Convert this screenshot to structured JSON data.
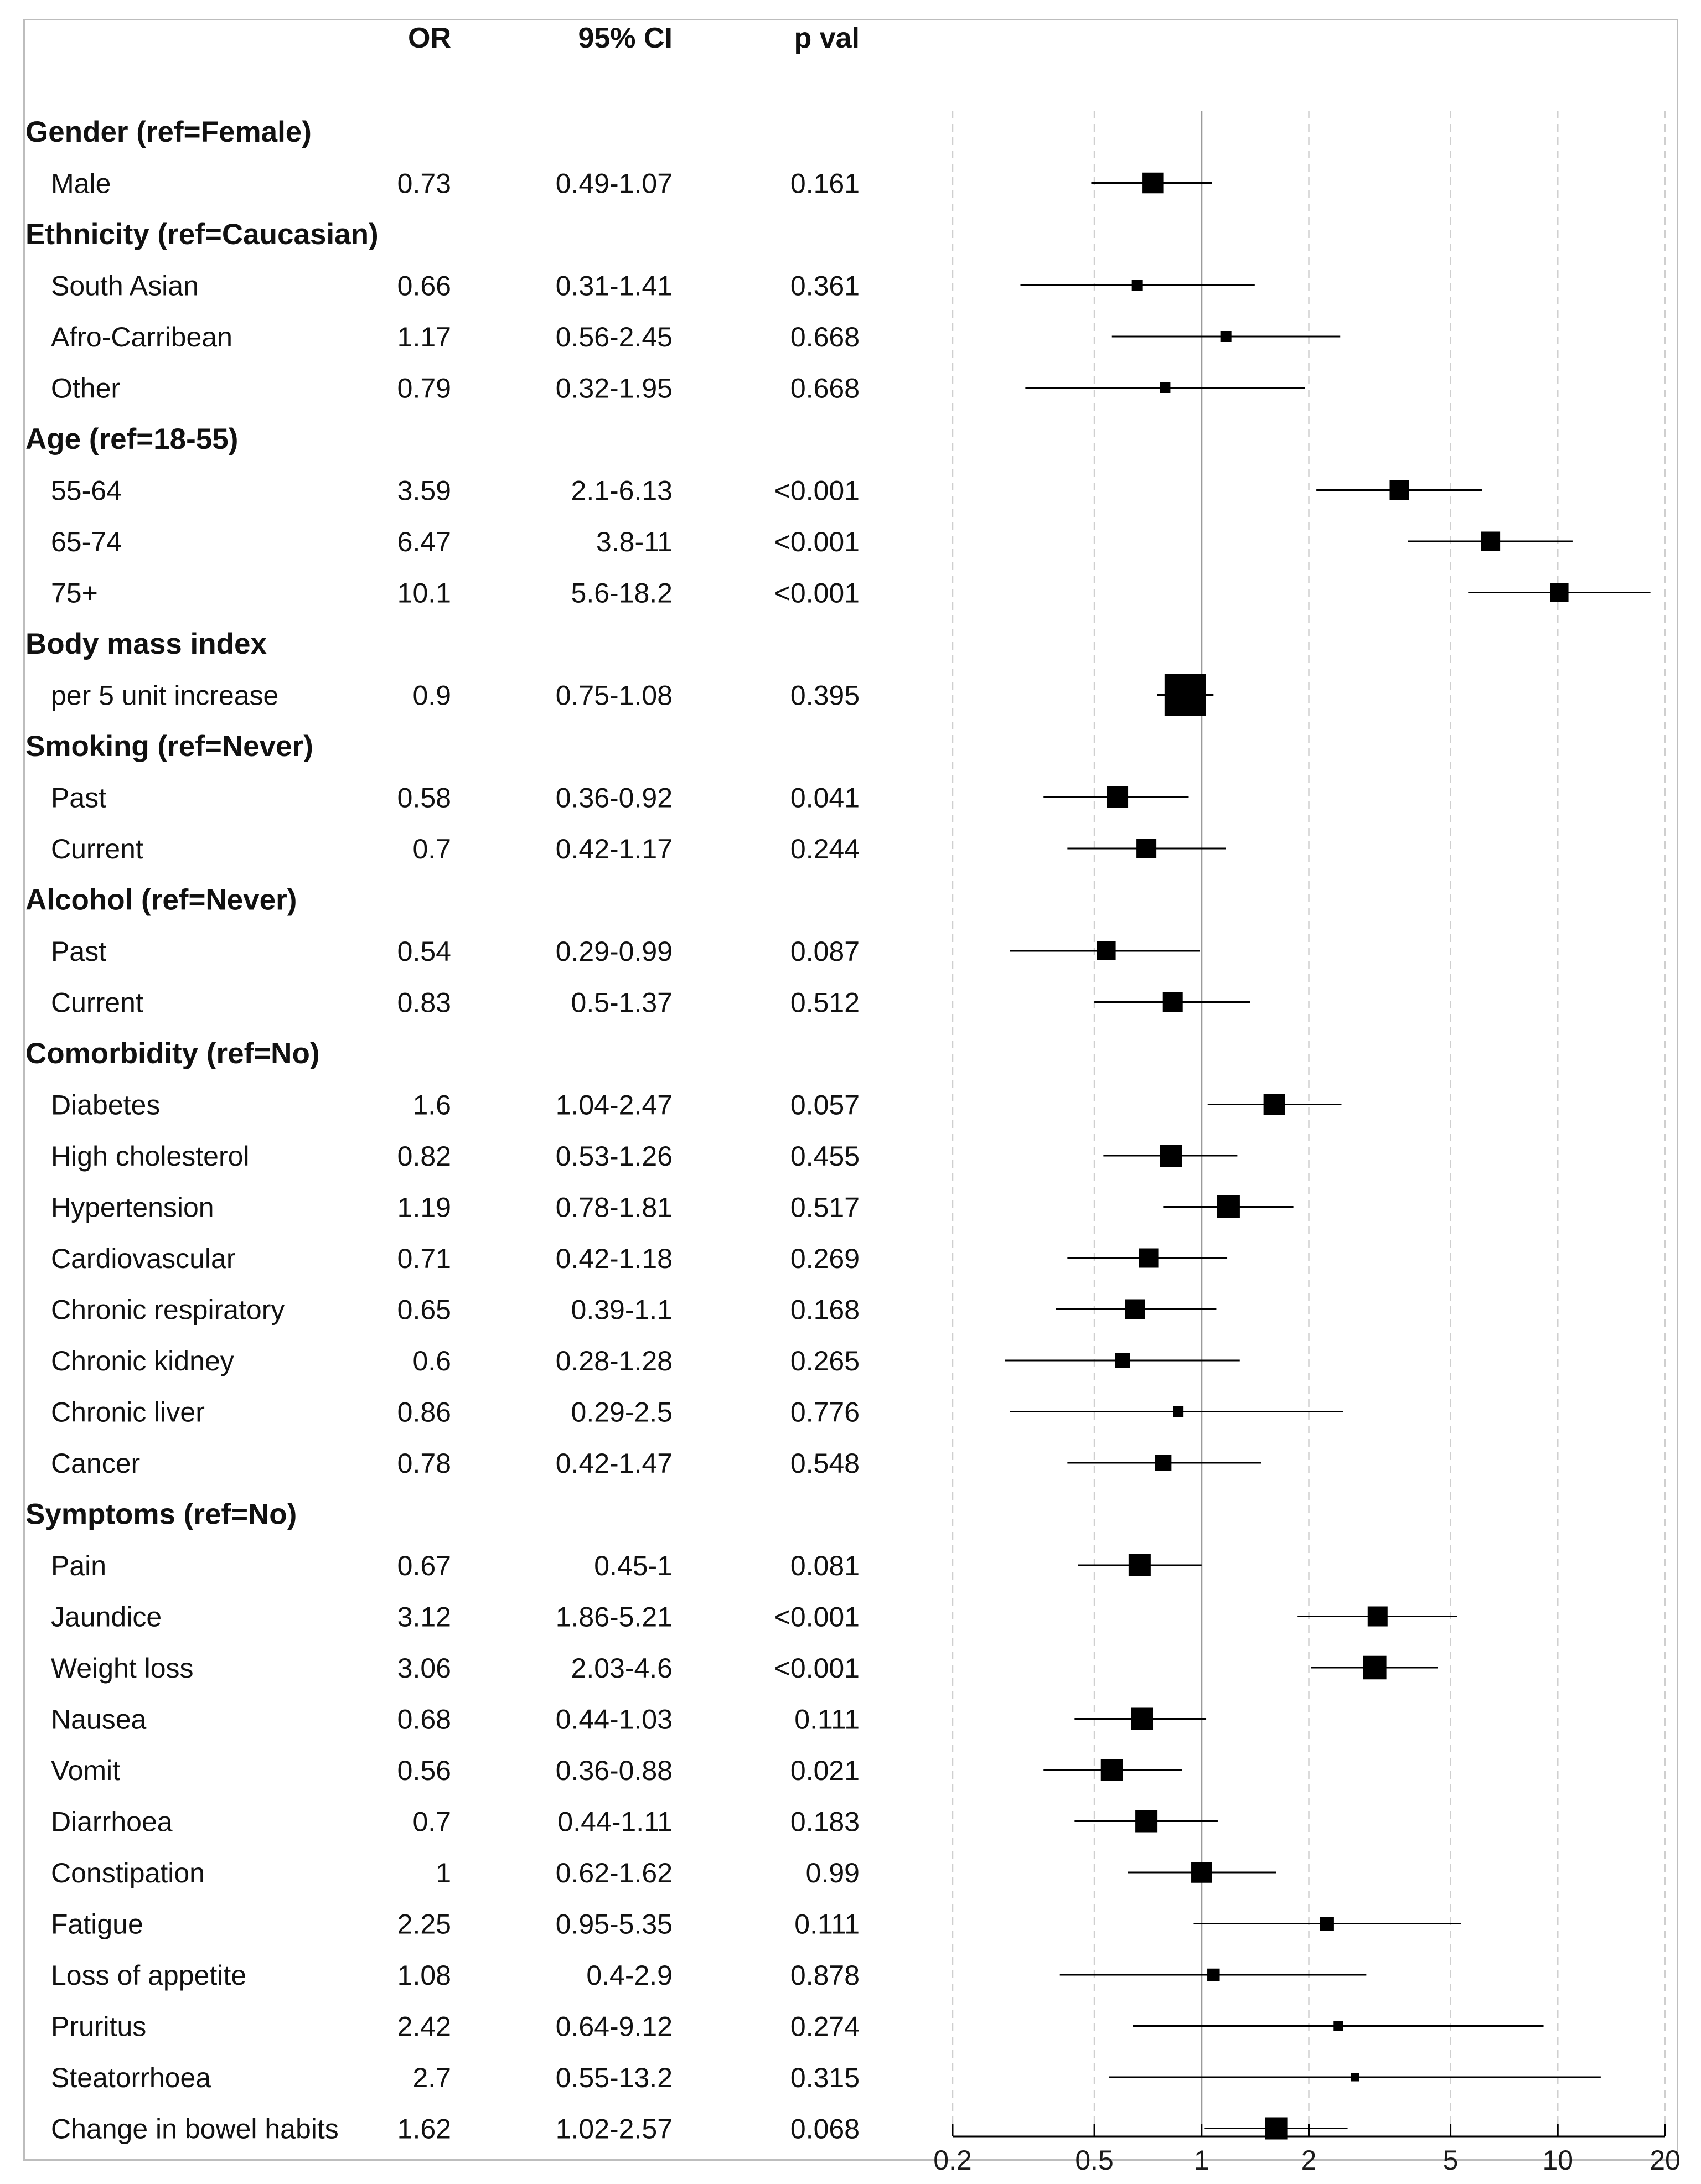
{
  "chart_data": {
    "type": "forest",
    "columns": [
      "OR",
      "95% CI",
      "p val"
    ],
    "x_scale": "log",
    "xlim": [
      0.2,
      20
    ],
    "x_ticks": [
      "0.2",
      "0.5",
      "1",
      "2",
      "5",
      "10",
      "20"
    ],
    "reference_line": 1,
    "rows": [
      {
        "kind": "group",
        "label": "Gender (ref=Female)"
      },
      {
        "kind": "item",
        "label": "Male",
        "or_text": "0.73",
        "ci_text": "0.49-1.07",
        "p_text": "0.161",
        "or": 0.73,
        "lo": 0.49,
        "hi": 1.07,
        "weight": 0.75
      },
      {
        "kind": "group",
        "label": "Ethnicity (ref=Caucasian)"
      },
      {
        "kind": "item",
        "label": "South Asian",
        "or_text": "0.66",
        "ci_text": "0.31-1.41",
        "p_text": "0.361",
        "or": 0.66,
        "lo": 0.31,
        "hi": 1.41,
        "weight": 0.4
      },
      {
        "kind": "item",
        "label": "Afro-Carribean",
        "or_text": "1.17",
        "ci_text": "0.56-2.45",
        "p_text": "0.668",
        "or": 1.17,
        "lo": 0.56,
        "hi": 2.45,
        "weight": 0.4
      },
      {
        "kind": "item",
        "label": "Other",
        "or_text": "0.79",
        "ci_text": "0.32-1.95",
        "p_text": "0.668",
        "or": 0.79,
        "lo": 0.32,
        "hi": 1.95,
        "weight": 0.38
      },
      {
        "kind": "group",
        "label": "Age (ref=18-55)"
      },
      {
        "kind": "item",
        "label": "55-64",
        "or_text": "3.59",
        "ci_text": "2.1-6.13",
        "p_text": "<0.001",
        "or": 3.59,
        "lo": 2.1,
        "hi": 6.13,
        "weight": 0.7
      },
      {
        "kind": "item",
        "label": "65-74",
        "or_text": "6.47",
        "ci_text": "3.8-11",
        "p_text": "<0.001",
        "or": 6.47,
        "lo": 3.8,
        "hi": 11,
        "weight": 0.7
      },
      {
        "kind": "item",
        "label": "75+",
        "or_text": "10.1",
        "ci_text": "5.6-18.2",
        "p_text": "<0.001",
        "or": 10.1,
        "lo": 5.6,
        "hi": 18.2,
        "weight": 0.66
      },
      {
        "kind": "group",
        "label": "Body mass index"
      },
      {
        "kind": "item",
        "label": "per 5 unit increase",
        "or_text": "0.9",
        "ci_text": "0.75-1.08",
        "p_text": "0.395",
        "or": 0.9,
        "lo": 0.75,
        "hi": 1.08,
        "weight": 1.5
      },
      {
        "kind": "group",
        "label": "Smoking (ref=Never)"
      },
      {
        "kind": "item",
        "label": "Past",
        "or_text": "0.58",
        "ci_text": "0.36-0.92",
        "p_text": "0.041",
        "or": 0.58,
        "lo": 0.36,
        "hi": 0.92,
        "weight": 0.78
      },
      {
        "kind": "item",
        "label": "Current",
        "or_text": "0.7",
        "ci_text": "0.42-1.17",
        "p_text": "0.244",
        "or": 0.7,
        "lo": 0.42,
        "hi": 1.17,
        "weight": 0.72
      },
      {
        "kind": "group",
        "label": "Alcohol (ref=Never)"
      },
      {
        "kind": "item",
        "label": "Past",
        "or_text": "0.54",
        "ci_text": "0.29-0.99",
        "p_text": "0.087",
        "or": 0.54,
        "lo": 0.29,
        "hi": 0.99,
        "weight": 0.68
      },
      {
        "kind": "item",
        "label": "Current",
        "or_text": "0.83",
        "ci_text": "0.5-1.37",
        "p_text": "0.512",
        "or": 0.83,
        "lo": 0.5,
        "hi": 1.37,
        "weight": 0.72
      },
      {
        "kind": "group",
        "label": "Comorbidity (ref=No)"
      },
      {
        "kind": "item",
        "label": "Diabetes",
        "or_text": "1.6",
        "ci_text": "1.04-2.47",
        "p_text": "0.057",
        "or": 1.6,
        "lo": 1.04,
        "hi": 2.47,
        "weight": 0.78
      },
      {
        "kind": "item",
        "label": "High cholesterol",
        "or_text": "0.82",
        "ci_text": "0.53-1.26",
        "p_text": "0.455",
        "or": 0.82,
        "lo": 0.53,
        "hi": 1.26,
        "weight": 0.8
      },
      {
        "kind": "item",
        "label": "Hypertension",
        "or_text": "1.19",
        "ci_text": "0.78-1.81",
        "p_text": "0.517",
        "or": 1.19,
        "lo": 0.78,
        "hi": 1.81,
        "weight": 0.82
      },
      {
        "kind": "item",
        "label": "Cardiovascular",
        "or_text": "0.71",
        "ci_text": "0.42-1.18",
        "p_text": "0.269",
        "or": 0.71,
        "lo": 0.42,
        "hi": 1.18,
        "weight": 0.7
      },
      {
        "kind": "item",
        "label": "Chronic respiratory",
        "or_text": "0.65",
        "ci_text": "0.39-1.1",
        "p_text": "0.168",
        "or": 0.65,
        "lo": 0.39,
        "hi": 1.1,
        "weight": 0.72
      },
      {
        "kind": "item",
        "label": "Chronic kidney",
        "or_text": "0.6",
        "ci_text": "0.28-1.28",
        "p_text": "0.265",
        "or": 0.6,
        "lo": 0.28,
        "hi": 1.28,
        "weight": 0.55
      },
      {
        "kind": "item",
        "label": "Chronic liver",
        "or_text": "0.86",
        "ci_text": "0.29-2.5",
        "p_text": "0.776",
        "or": 0.86,
        "lo": 0.29,
        "hi": 2.5,
        "weight": 0.38
      },
      {
        "kind": "item",
        "label": "Cancer",
        "or_text": "0.78",
        "ci_text": "0.42-1.47",
        "p_text": "0.548",
        "or": 0.78,
        "lo": 0.42,
        "hi": 1.47,
        "weight": 0.6
      },
      {
        "kind": "group",
        "label": "Symptoms (ref=No)"
      },
      {
        "kind": "item",
        "label": "Pain",
        "or_text": "0.67",
        "ci_text": "0.45-1",
        "p_text": "0.081",
        "or": 0.67,
        "lo": 0.45,
        "hi": 1,
        "weight": 0.8
      },
      {
        "kind": "item",
        "label": "Jaundice",
        "or_text": "3.12",
        "ci_text": "1.86-5.21",
        "p_text": "<0.001",
        "or": 3.12,
        "lo": 1.86,
        "hi": 5.21,
        "weight": 0.72
      },
      {
        "kind": "item",
        "label": "Weight loss",
        "or_text": "3.06",
        "ci_text": "2.03-4.6",
        "p_text": "<0.001",
        "or": 3.06,
        "lo": 2.03,
        "hi": 4.6,
        "weight": 0.85
      },
      {
        "kind": "item",
        "label": "Nausea",
        "or_text": "0.68",
        "ci_text": "0.44-1.03",
        "p_text": "0.111",
        "or": 0.68,
        "lo": 0.44,
        "hi": 1.03,
        "weight": 0.8
      },
      {
        "kind": "item",
        "label": "Vomit",
        "or_text": "0.56",
        "ci_text": "0.36-0.88",
        "p_text": "0.021",
        "or": 0.56,
        "lo": 0.36,
        "hi": 0.88,
        "weight": 0.8
      },
      {
        "kind": "item",
        "label": "Diarrhoea",
        "or_text": "0.7",
        "ci_text": "0.44-1.11",
        "p_text": "0.183",
        "or": 0.7,
        "lo": 0.44,
        "hi": 1.11,
        "weight": 0.8
      },
      {
        "kind": "item",
        "label": "Constipation",
        "or_text": "1",
        "ci_text": "0.62-1.62",
        "p_text": "0.99",
        "or": 1.0,
        "lo": 0.62,
        "hi": 1.62,
        "weight": 0.75
      },
      {
        "kind": "item",
        "label": "Fatigue",
        "or_text": "2.25",
        "ci_text": "0.95-5.35",
        "p_text": "0.111",
        "or": 2.25,
        "lo": 0.95,
        "hi": 5.35,
        "weight": 0.5
      },
      {
        "kind": "item",
        "label": "Loss of appetite",
        "or_text": "1.08",
        "ci_text": "0.4-2.9",
        "p_text": "0.878",
        "or": 1.08,
        "lo": 0.4,
        "hi": 2.9,
        "weight": 0.45
      },
      {
        "kind": "item",
        "label": "Pruritus",
        "or_text": "2.42",
        "ci_text": "0.64-9.12",
        "p_text": "0.274",
        "or": 2.42,
        "lo": 0.64,
        "hi": 9.12,
        "weight": 0.34
      },
      {
        "kind": "item",
        "label": "Steatorrhoea",
        "or_text": "2.7",
        "ci_text": "0.55-13.2",
        "p_text": "0.315",
        "or": 2.7,
        "lo": 0.55,
        "hi": 13.2,
        "weight": 0.3
      },
      {
        "kind": "item",
        "label": "Change in bowel habits",
        "or_text": "1.62",
        "ci_text": "1.02-2.57",
        "p_text": "0.068",
        "or": 1.62,
        "lo": 1.02,
        "hi": 2.57,
        "weight": 0.8
      }
    ]
  },
  "colors": {
    "frame": "#bdbdbd",
    "grid": "#cfcfcf",
    "ref_line": "#9a9a9a",
    "marker": "#000000",
    "text": "#111111"
  }
}
